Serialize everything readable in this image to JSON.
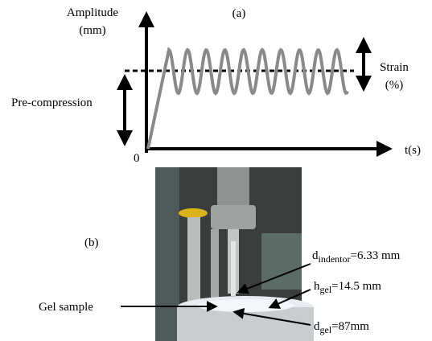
{
  "panel_a": {
    "label": "(a)",
    "y_axis_title": [
      "Amplitude",
      "(mm)"
    ],
    "x_axis_title": "t(s)",
    "origin": "0",
    "strain_label": [
      "Strain",
      "(%)"
    ],
    "precompression_label": "Pre-compression"
  },
  "panel_b": {
    "label": "(b)",
    "gel_sample": "Gel sample",
    "annotations": [
      {
        "main": "d",
        "sub": "indentor",
        "rest": "=6.33 mm"
      },
      {
        "main": "h",
        "sub": "gel",
        "rest": "=14.5 mm"
      },
      {
        "main": "d",
        "sub": "gel",
        "rest": "=87mm"
      }
    ]
  }
}
